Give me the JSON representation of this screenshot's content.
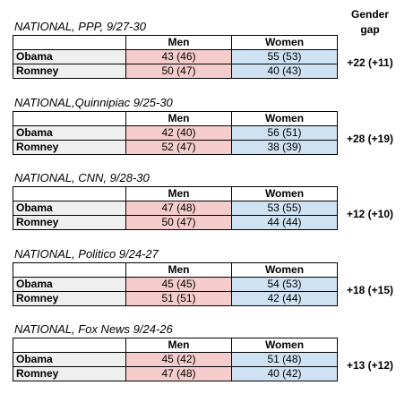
{
  "header": {
    "gap_title": "Gender gap"
  },
  "columns": [
    "Men",
    "Women"
  ],
  "polls": [
    {
      "title": "NATIONAL, PPP, 9/27-30",
      "rows": [
        [
          "Obama",
          "43 (46)",
          "55 (53)"
        ],
        [
          "Romney",
          "50 (47)",
          "40 (43)"
        ]
      ],
      "gap": "+22 (+11)"
    },
    {
      "title": "NATIONAL,Quinnipiac 9/25-30",
      "rows": [
        [
          "Obama",
          "42 (40)",
          "56 (51)"
        ],
        [
          "Romney",
          "52 (47)",
          "38 (39)"
        ]
      ],
      "gap": "+28 (+19)"
    },
    {
      "title": "NATIONAL, CNN, 9/28-30",
      "rows": [
        [
          "Obama",
          "47 (48)",
          "53 (55)"
        ],
        [
          "Romney",
          "50 (47)",
          "44 (44)"
        ]
      ],
      "gap": "+12 (+10)"
    },
    {
      "title": "NATIONAL, Politico 9/24-27",
      "rows": [
        [
          "Obama",
          "45 (45)",
          "54 (53)"
        ],
        [
          "Romney",
          "51 (51)",
          "42 (44)"
        ]
      ],
      "gap": "+18 (+15)"
    },
    {
      "title": "NATIONAL, Fox News 9/24-26",
      "rows": [
        [
          "Obama",
          "45 (42)",
          "51 (48)"
        ],
        [
          "Romney",
          "47 (48)",
          "40 (42)"
        ]
      ],
      "gap": "+13 (+12)"
    }
  ]
}
